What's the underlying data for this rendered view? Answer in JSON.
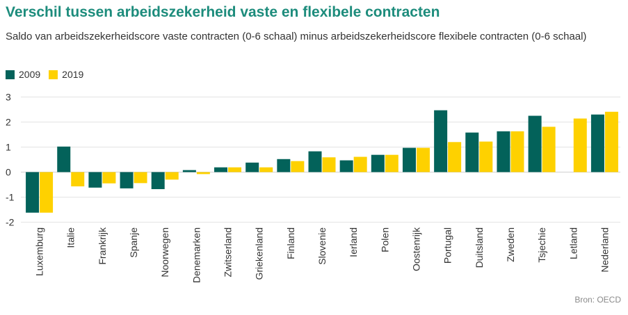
{
  "title": "Verschil tussen arbeidszekerheid vaste en flexibele contracten",
  "subtitle": "Saldo van arbeidszekerheidscore vaste contracten (0-6 schaal) minus arbeidszekerheidscore flexibele contracten (0-6 schaal)",
  "source": "Bron: OECD",
  "colors": {
    "s2009": "#03625a",
    "s2019": "#fed100",
    "grid": "#e3e3e3",
    "axis_text": "#333333"
  },
  "chart_data": {
    "type": "bar",
    "categories": [
      "Luxemburg",
      "Italie",
      "Frankrijk",
      "Spanje",
      "Noorwegen",
      "Denemarken",
      "Zwitserland",
      "Griekenland",
      "Finland",
      "Slovenie",
      "Ierland",
      "Polen",
      "Oostenrijk",
      "Portugal",
      "Duitsland",
      "Zweden",
      "Tsjechie",
      "Letland",
      "Nederland"
    ],
    "series": [
      {
        "name": "2009",
        "values": [
          -1.62,
          1.02,
          -0.62,
          -0.65,
          -0.68,
          0.08,
          0.19,
          0.38,
          0.52,
          0.83,
          0.47,
          0.69,
          0.97,
          2.47,
          1.58,
          1.63,
          2.25,
          null,
          2.3
        ]
      },
      {
        "name": "2019",
        "values": [
          -1.62,
          -0.57,
          -0.45,
          -0.44,
          -0.3,
          -0.08,
          0.19,
          0.19,
          0.44,
          0.59,
          0.61,
          0.69,
          0.97,
          1.2,
          1.22,
          1.63,
          1.81,
          2.14,
          2.41
        ]
      }
    ],
    "yticks": [
      "-2",
      "-1",
      "0",
      "1",
      "2",
      "3"
    ],
    "ylim": [
      -2,
      3
    ],
    "grid": true,
    "legend": "top-left"
  }
}
